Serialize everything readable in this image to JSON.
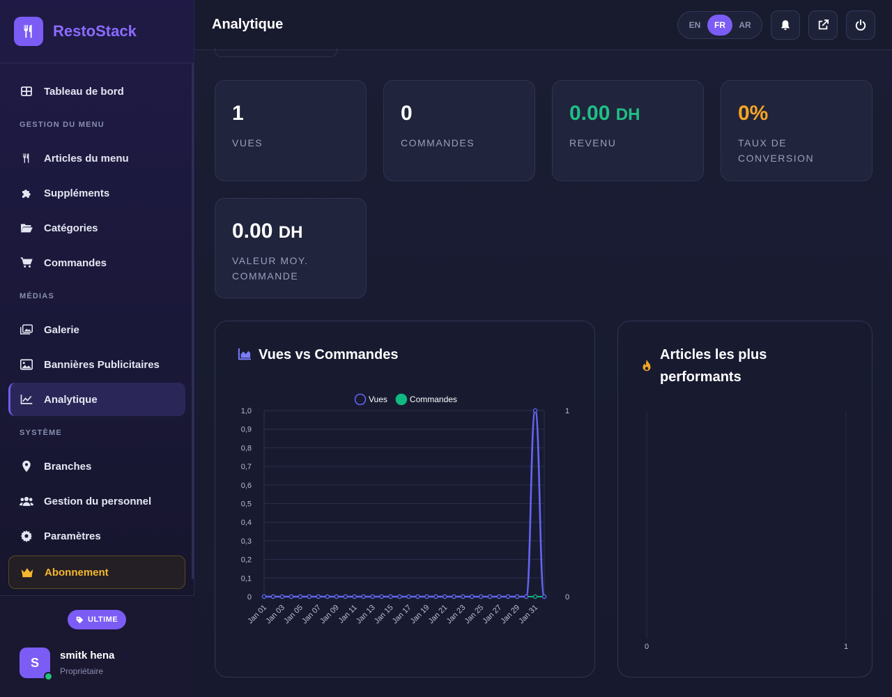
{
  "brand": {
    "name": "RestoStack"
  },
  "sidebar": {
    "dashboard": "Tableau de bord",
    "section_menu": "GESTION DU MENU",
    "menu_items": "Articles du menu",
    "supplements": "Suppléments",
    "categories": "Catégories",
    "orders": "Commandes",
    "section_media": "MÉDIAS",
    "gallery": "Galerie",
    "banners": "Bannières Publicitaires",
    "analytics": "Analytique",
    "section_system": "SYSTÈME",
    "branches": "Branches",
    "staff": "Gestion du personnel",
    "settings": "Paramètres",
    "subscription": "Abonnement"
  },
  "footer": {
    "plan": "ULTIME",
    "avatar_letter": "S",
    "user_name": "smitk hena",
    "user_role": "Propriétaire"
  },
  "header": {
    "title": "Analytique",
    "languages": [
      "EN",
      "FR",
      "AR"
    ],
    "active_language": "FR"
  },
  "stats": {
    "views": {
      "value": "1",
      "label": "VUES"
    },
    "orders": {
      "value": "0",
      "label": "COMMANDES"
    },
    "revenue": {
      "value": "0.00",
      "unit": "DH",
      "label": "REVENU",
      "color": "#1fbf86"
    },
    "conversion": {
      "value": "0%",
      "label": "TAUX DE CONVERSION",
      "color": "#f5a524"
    },
    "avg_order": {
      "value": "0.00",
      "unit": "DH",
      "label": "VALEUR MOY. COMMANDE"
    }
  },
  "chart_card": {
    "title": "Vues vs Commandes"
  },
  "top_card": {
    "title": "Articles les plus performants"
  },
  "chart_data": [
    {
      "type": "line",
      "title": "Vues vs Commandes",
      "x": [
        "Jan 01",
        "Jan 02",
        "Jan 03",
        "Jan 04",
        "Jan 05",
        "Jan 06",
        "Jan 07",
        "Jan 08",
        "Jan 09",
        "Jan 10",
        "Jan 11",
        "Jan 12",
        "Jan 13",
        "Jan 14",
        "Jan 15",
        "Jan 16",
        "Jan 17",
        "Jan 18",
        "Jan 19",
        "Jan 20",
        "Jan 21",
        "Jan 22",
        "Jan 23",
        "Jan 24",
        "Jan 25",
        "Jan 26",
        "Jan 27",
        "Jan 28",
        "Jan 29",
        "Jan 30",
        "Jan 31",
        "Feb 01"
      ],
      "x_tick_labels": [
        "Jan 01",
        "Jan 03",
        "Jan 05",
        "Jan 07",
        "Jan 09",
        "Jan 11",
        "Jan 13",
        "Jan 15",
        "Jan 17",
        "Jan 19",
        "Jan 21",
        "Jan 23",
        "Jan 25",
        "Jan 27",
        "Jan 29",
        "Jan 31"
      ],
      "series": [
        {
          "name": "Vues",
          "color": "#6366f1",
          "values": [
            0,
            0,
            0,
            0,
            0,
            0,
            0,
            0,
            0,
            0,
            0,
            0,
            0,
            0,
            0,
            0,
            0,
            0,
            0,
            0,
            0,
            0,
            0,
            0,
            0,
            0,
            0,
            0,
            0,
            0,
            1,
            0
          ]
        },
        {
          "name": "Commandes",
          "color": "#10b981",
          "values": [
            0,
            0,
            0,
            0,
            0,
            0,
            0,
            0,
            0,
            0,
            0,
            0,
            0,
            0,
            0,
            0,
            0,
            0,
            0,
            0,
            0,
            0,
            0,
            0,
            0,
            0,
            0,
            0,
            0,
            0,
            0,
            0
          ]
        }
      ],
      "ylim": [
        0,
        1
      ],
      "y_tick_labels": [
        "0",
        "0,1",
        "0,2",
        "0,3",
        "0,4",
        "0,5",
        "0,6",
        "0,7",
        "0,8",
        "0,9",
        "1,0"
      ],
      "y2_tick_labels": [
        "0",
        "1"
      ],
      "grid": true,
      "legend": "top-center"
    },
    {
      "type": "bar",
      "title": "Articles les plus performants",
      "categories": [],
      "values": [],
      "xlim": [
        0,
        1
      ],
      "x_tick_labels": [
        "0",
        "1"
      ]
    }
  ],
  "icons": {
    "logo": "utensils-icon",
    "dashboard": "grid-icon",
    "menu": "utensils-icon",
    "supplements": "puzzle-icon",
    "categories": "folder-open-icon",
    "orders": "cart-icon",
    "gallery": "images-icon",
    "banners": "image-icon",
    "analytics": "chart-line-icon",
    "branches": "map-pin-icon",
    "staff": "users-icon",
    "settings": "gear-icon",
    "subscription": "crown-icon",
    "plan": "tag-icon",
    "bell": "bell-icon",
    "external": "external-link-icon",
    "power": "power-icon",
    "chart": "chart-area-icon",
    "fire": "fire-icon"
  },
  "colors": {
    "accent": "#7b5cf5",
    "gold": "#f5b82e",
    "green": "#1fbf86",
    "orange": "#f5a524"
  }
}
